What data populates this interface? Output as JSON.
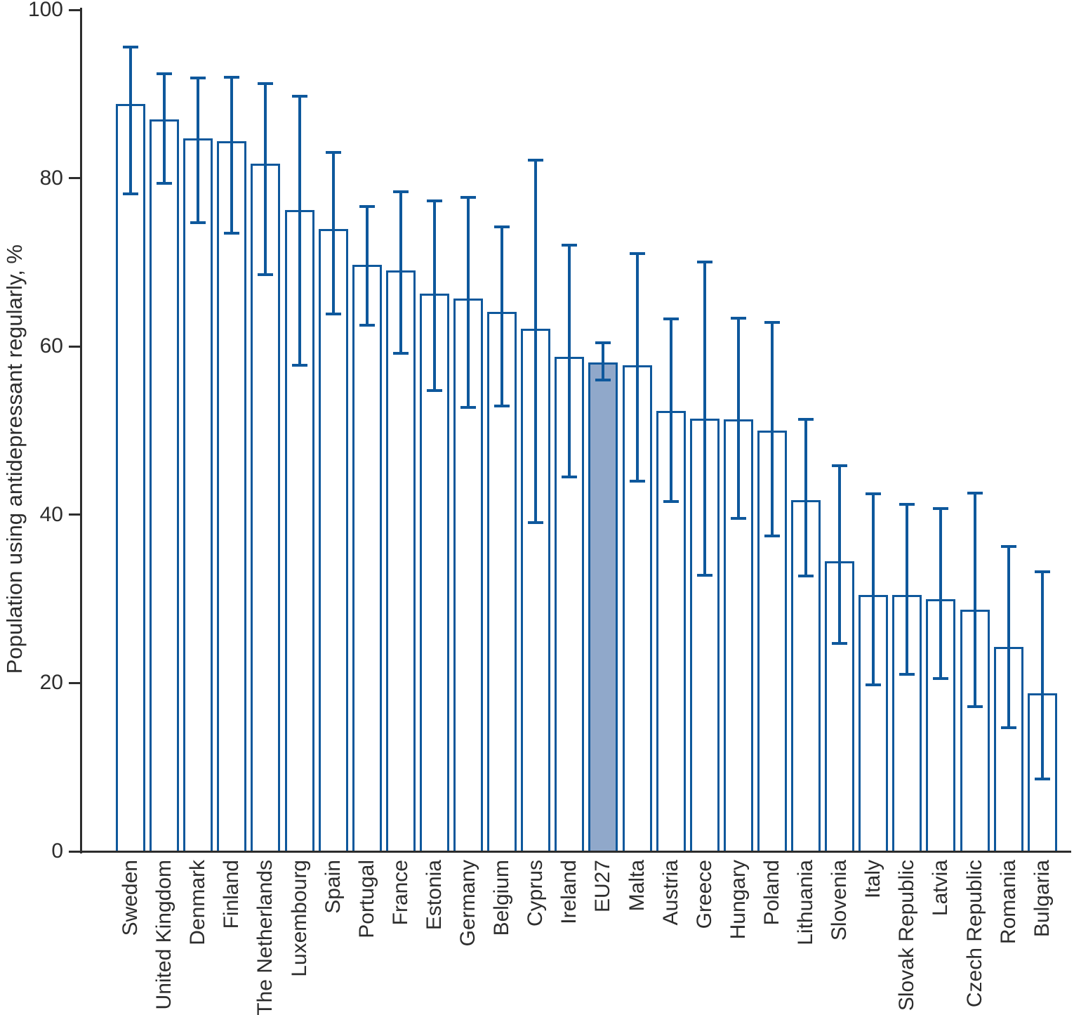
{
  "chart_data": {
    "type": "bar",
    "title": "",
    "xlabel": "",
    "ylabel": "Population using antidepressant regularly, %",
    "ylim": [
      0,
      100
    ],
    "yticks": [
      0,
      20,
      40,
      60,
      80,
      100
    ],
    "grid": false,
    "legend": null,
    "error_bars": true,
    "highlight_category": "EU27",
    "categories": [
      "Sweden",
      "United Kingdom",
      "Denmark",
      "Finland",
      "The Netherlands",
      "Luxembourg",
      "Spain",
      "Portugal",
      "France",
      "Estonia",
      "Germany",
      "Belgium",
      "Cyprus",
      "Ireland",
      "EU27",
      "Malta",
      "Austria",
      "Greece",
      "Hungary",
      "Poland",
      "Lithuania",
      "Slovenia",
      "Italy",
      "Slovak Republic",
      "Latvia",
      "Czech Republic",
      "Romania",
      "Bulgaria"
    ],
    "series": [
      {
        "name": "Population using antidepressant regularly, %",
        "values": [
          88.8,
          87.0,
          84.7,
          84.4,
          81.7,
          76.2,
          74.0,
          69.7,
          69.0,
          66.3,
          65.7,
          64.1,
          62.1,
          58.8,
          58.1,
          57.8,
          52.3,
          51.4,
          51.3,
          50.0,
          41.7,
          34.5,
          30.5,
          30.5,
          30.0,
          28.7,
          24.3,
          18.8
        ],
        "ci_low": [
          78.1,
          79.4,
          74.7,
          73.5,
          68.5,
          57.8,
          63.9,
          62.5,
          59.2,
          54.8,
          52.8,
          52.9,
          39.1,
          44.5,
          56.0,
          44.0,
          41.6,
          32.8,
          39.6,
          37.5,
          32.7,
          24.7,
          19.8,
          21.0,
          20.5,
          17.2,
          14.7,
          8.6
        ],
        "ci_high": [
          95.6,
          92.4,
          91.9,
          92.0,
          91.2,
          89.7,
          83.1,
          76.6,
          78.4,
          77.3,
          77.7,
          74.2,
          82.1,
          72.0,
          60.4,
          71.0,
          63.3,
          70.0,
          63.4,
          62.9,
          51.3,
          45.8,
          42.5,
          41.2,
          40.7,
          42.6,
          36.2,
          33.2
        ]
      }
    ],
    "colors": {
      "bar_outline": "#0e589c",
      "bar_fill": "#ffffff",
      "highlight_fill": "#90a8ca",
      "axis": "#2d2d2d",
      "text": "#2d2d2d",
      "background": "#ffffff"
    }
  }
}
